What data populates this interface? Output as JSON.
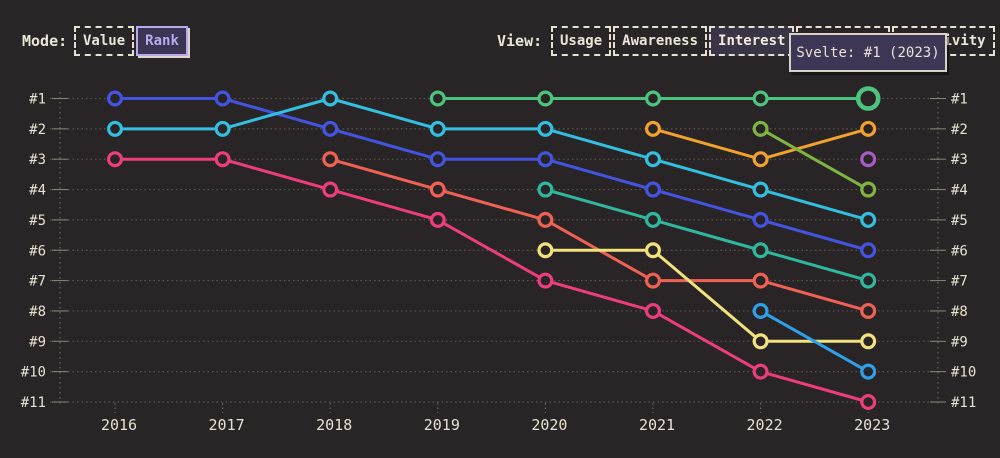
{
  "header": {
    "mode": {
      "label": "Mode:",
      "options": [
        {
          "label": "Value",
          "selected": false
        },
        {
          "label": "Rank",
          "selected": true
        }
      ]
    },
    "view": {
      "label": "View:",
      "options": [
        {
          "label": "Usage",
          "selected": false
        },
        {
          "label": "Awareness",
          "selected": false
        },
        {
          "label": "Interest",
          "selected": true
        },
        {
          "label": "Retention",
          "selected": false
        },
        {
          "label": "Positivity",
          "selected": false
        }
      ]
    }
  },
  "tooltip": {
    "text": "Svelte: #1 (2023)"
  },
  "chart_data": {
    "type": "line",
    "subtype": "bump-rank-chart",
    "x": [
      2016,
      2017,
      2018,
      2019,
      2020,
      2021,
      2022,
      2023
    ],
    "y_ticks": [
      "#1",
      "#2",
      "#3",
      "#4",
      "#5",
      "#6",
      "#7",
      "#8",
      "#9",
      "#10",
      "#11"
    ],
    "ylim": [
      1,
      11
    ],
    "grid": "dotted horizontal rows, dotted axis verticals left and right",
    "legend": "none (colors only; one series identified by tooltip as Svelte)",
    "series": [
      {
        "id": "blue",
        "color": "#4355e0",
        "ranks": [
          1,
          1,
          2,
          3,
          3,
          4,
          5,
          6
        ]
      },
      {
        "id": "cyan",
        "color": "#33bfe0",
        "ranks": [
          2,
          2,
          1,
          2,
          2,
          3,
          4,
          5
        ]
      },
      {
        "id": "pink",
        "color": "#ee3d7d",
        "ranks": [
          3,
          3,
          4,
          5,
          7,
          8,
          10,
          11
        ]
      },
      {
        "id": "salmon",
        "color": "#ef6155",
        "ranks": [
          null,
          null,
          3,
          4,
          5,
          7,
          7,
          8
        ]
      },
      {
        "id": "green",
        "label": "Svelte",
        "color": "#4cc47d",
        "ranks": [
          null,
          null,
          null,
          1,
          1,
          1,
          1,
          1
        ],
        "highlight_last": true
      },
      {
        "id": "teal",
        "color": "#2fb89d",
        "ranks": [
          null,
          null,
          null,
          null,
          4,
          5,
          6,
          7
        ]
      },
      {
        "id": "yellow",
        "color": "#f2e27e",
        "ranks": [
          null,
          null,
          null,
          null,
          6,
          6,
          9,
          9
        ]
      },
      {
        "id": "orange",
        "color": "#f0a12e",
        "ranks": [
          null,
          null,
          null,
          null,
          null,
          2,
          3,
          2
        ]
      },
      {
        "id": "lime",
        "color": "#7fb43f",
        "ranks": [
          null,
          null,
          null,
          null,
          null,
          null,
          2,
          4
        ]
      },
      {
        "id": "lightblue",
        "color": "#2e9fe9",
        "ranks": [
          null,
          null,
          null,
          null,
          null,
          null,
          8,
          10
        ]
      },
      {
        "id": "purple",
        "color": "#a55cc5",
        "ranks": [
          null,
          null,
          null,
          null,
          null,
          null,
          null,
          3
        ]
      }
    ],
    "highlighted_point": {
      "series_label": "Svelte",
      "year": 2023,
      "rank": 1
    }
  },
  "colors": {
    "background": "#292425",
    "text": "#ece6da",
    "tick_text": "#e8e1d3",
    "grid_dots": "#5e5751",
    "axis_dots": "#6e675f",
    "tick_mark": "#8d857a",
    "accent_lavender": "#b9aaf0",
    "selected_view_bg": "#3a3447",
    "selected_mode_bg": "#3b3453",
    "tooltip_bg": "#3d3655",
    "tooltip_border": "#d9d2c4"
  }
}
